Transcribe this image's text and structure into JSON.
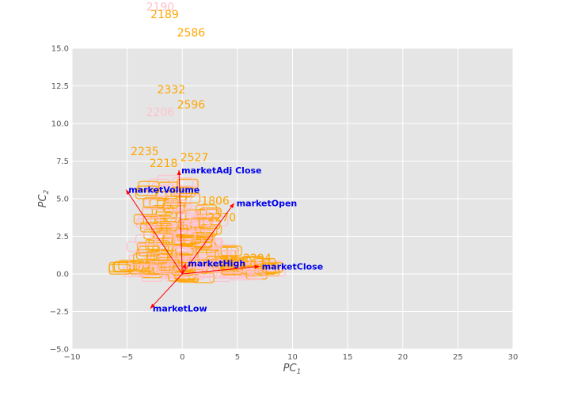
{
  "chart_data": {
    "type": "scatter",
    "title": "",
    "xlabel": "PC",
    "xlabel_sub": "1",
    "ylabel": "PC",
    "ylabel_sub": "2",
    "xlim": [
      -10,
      30
    ],
    "ylim": [
      -5,
      15
    ],
    "xticks": [
      -10,
      -5,
      0,
      5,
      10,
      15,
      20,
      25,
      30
    ],
    "yticks": [
      -5.0,
      -2.5,
      0.0,
      2.5,
      5.0,
      7.5,
      10.0,
      12.5,
      15.0
    ],
    "xtick_labels": [
      "−10",
      "−5",
      "0",
      "5",
      "10",
      "15",
      "20",
      "25",
      "30"
    ],
    "ytick_labels": [
      "−5.0",
      "−2.5",
      "0.0",
      "2.5",
      "5.0",
      "7.5",
      "10.0",
      "12.5",
      "15.0"
    ],
    "grid": true,
    "background": "#e5e5e5",
    "grid_color": "#ffffff",
    "colors": {
      "orange": "#ffa500",
      "pink": "#ffc0cb",
      "arrow": "#ff0000",
      "loading_text": "#0000ee"
    },
    "labeled_points": [
      {
        "label": "2190",
        "x": -2.0,
        "y": 17.5,
        "color": "pink"
      },
      {
        "label": "2189",
        "x": -1.6,
        "y": 17.0,
        "color": "orange"
      },
      {
        "label": "2586",
        "x": 0.8,
        "y": 15.8,
        "color": "orange"
      },
      {
        "label": "2332",
        "x": -1.0,
        "y": 12.0,
        "color": "orange"
      },
      {
        "label": "2596",
        "x": 0.8,
        "y": 11.0,
        "color": "orange"
      },
      {
        "label": "2206",
        "x": -2.0,
        "y": 10.5,
        "color": "pink"
      },
      {
        "label": "2235",
        "x": -3.4,
        "y": 7.9,
        "color": "orange"
      },
      {
        "label": "2527",
        "x": 1.1,
        "y": 7.5,
        "color": "orange"
      },
      {
        "label": "2218",
        "x": -1.7,
        "y": 7.1,
        "color": "orange"
      },
      {
        "label": "1806",
        "x": 3.0,
        "y": 4.6,
        "color": "orange"
      },
      {
        "label": "2270",
        "x": 3.6,
        "y": 3.5,
        "color": "orange"
      },
      {
        "label": "2294",
        "x": 6.8,
        "y": 0.8,
        "color": "orange"
      }
    ],
    "loadings": [
      {
        "name": "marketAdj Close",
        "x": -0.3,
        "y": 6.9
      },
      {
        "name": "marketVolume",
        "x": -5.1,
        "y": 5.6
      },
      {
        "name": "marketOpen",
        "x": 4.7,
        "y": 4.7
      },
      {
        "name": "marketHigh",
        "x": 0.3,
        "y": 0.7
      },
      {
        "name": "marketClose",
        "x": 7.0,
        "y": 0.5
      },
      {
        "name": "marketLow",
        "x": -2.9,
        "y": -2.3
      }
    ]
  }
}
